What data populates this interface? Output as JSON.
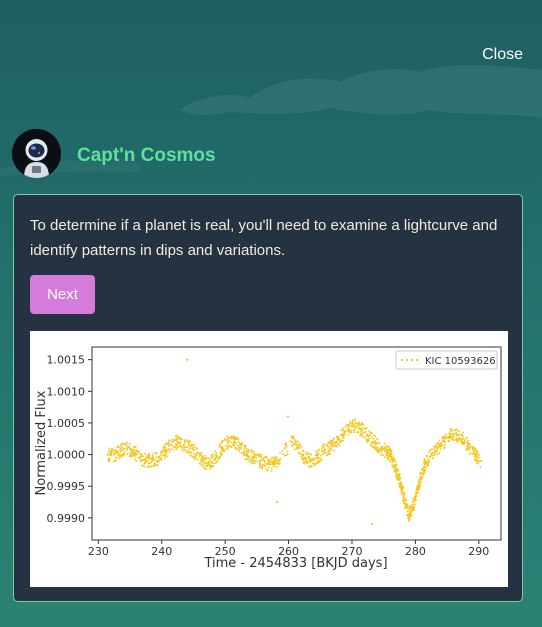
{
  "header": {
    "close_label": "Close"
  },
  "character": {
    "name": "Capt'n Cosmos",
    "avatar_icon": "astronaut-icon"
  },
  "message": {
    "text": "To determine if a planet is real, you'll need to examine a lightcurve and identify patterns in dips and variations."
  },
  "actions": {
    "next_label": "Next"
  },
  "colors": {
    "accent_green": "#5fe09b",
    "button": "#d57bd9",
    "panel": "#253241",
    "series": "#f5c518"
  },
  "chart_data": {
    "type": "scatter",
    "title": "",
    "xlabel": "Time - 2454833 [BKJD days]",
    "ylabel": "Normalized Flux",
    "xlim": [
      229,
      293.5
    ],
    "ylim": [
      0.99865,
      1.0017
    ],
    "xticks": [
      230,
      240,
      250,
      260,
      270,
      280,
      290
    ],
    "yticks": [
      0.999,
      0.9995,
      1.0,
      1.0005,
      1.001,
      1.0015
    ],
    "ytick_labels": [
      "0.9990",
      "0.9995",
      "1.0000",
      "1.0005",
      "1.0010",
      "1.0015"
    ],
    "legend": "upper right",
    "grid": false,
    "series": [
      {
        "name": "KIC 10593626",
        "x": [
          231.5,
          232.5,
          233.5,
          234.5,
          235.5,
          236.5,
          237.5,
          238.5,
          239.5,
          240.5,
          241.5,
          242.5,
          243.5,
          244.5,
          245.5,
          246.5,
          247.5,
          248.5,
          249.5,
          250.5,
          251.5,
          252.5,
          253.5,
          254.5,
          255.5,
          256.5,
          257.5,
          258.3,
          260.5,
          261.5,
          262.5,
          263.5,
          264.5,
          265.5,
          266.5,
          267.5,
          268.5,
          269.5,
          270.5,
          271.5,
          272.5,
          273.5,
          274.5,
          275.5,
          276.0,
          276.5,
          277.0,
          277.5,
          278.0,
          278.5,
          279.0,
          279.5,
          280.0,
          280.5,
          281.0,
          281.5,
          282.5,
          283.5,
          284.5,
          285.5,
          286.5,
          287.5,
          288.5,
          289.5,
          290.3
        ],
        "y": [
          1.0,
          1.0,
          1.00005,
          1.0001,
          1.00005,
          0.99995,
          0.9999,
          0.9999,
          0.99995,
          1.00005,
          1.00015,
          1.0002,
          1.00015,
          1.0001,
          1.0,
          0.9999,
          0.99985,
          0.99995,
          1.0001,
          1.0002,
          1.0002,
          1.0001,
          1.0,
          0.99995,
          0.9999,
          0.99985,
          0.99985,
          0.9999,
          1.0002,
          1.0001,
          0.99995,
          0.9999,
          0.99995,
          1.00005,
          1.0001,
          1.0002,
          1.0003,
          1.0004,
          1.00045,
          1.0004,
          1.0003,
          1.0002,
          1.0001,
          1.00005,
          1.0,
          0.9999,
          0.99975,
          0.9996,
          0.9994,
          0.9992,
          0.99905,
          0.99915,
          0.9993,
          0.9995,
          0.9997,
          0.99985,
          1.0,
          1.0001,
          1.0002,
          1.0003,
          1.0003,
          1.00025,
          1.0001,
          1.0,
          0.9999
        ],
        "outliers": [
          [
            244.0,
            1.0015
          ],
          [
            259.9,
            1.0006
          ],
          [
            258.2,
            0.99925
          ],
          [
            273.2,
            0.9989
          ]
        ]
      }
    ]
  }
}
